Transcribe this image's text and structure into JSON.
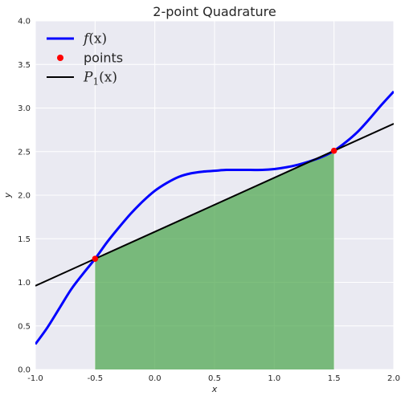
{
  "chart_data": {
    "type": "line",
    "title": "2-point Quadrature",
    "xlabel": "x",
    "ylabel": "y",
    "xlim": [
      -1.0,
      2.0
    ],
    "ylim": [
      0.0,
      4.0
    ],
    "xticks": [
      "-1.0",
      "-0.5",
      "0.0",
      "0.5",
      "1.0",
      "1.5",
      "2.0"
    ],
    "yticks": [
      "0.0",
      "0.5",
      "1.0",
      "1.5",
      "2.0",
      "2.5",
      "3.0",
      "3.5",
      "4.0"
    ],
    "grid": true,
    "legend_placement": "top-left",
    "colors": {
      "curve": "#0000ff",
      "points": "#ff0000",
      "interp": "#000000",
      "fill": "#4ca64c",
      "background": "#eaeaf2"
    },
    "series": [
      {
        "kind": "curve",
        "x": [
          -1.0,
          -0.9,
          -0.8,
          -0.7,
          -0.6,
          -0.5,
          -0.4,
          -0.3,
          -0.2,
          -0.1,
          0.0,
          0.1,
          0.2,
          0.3,
          0.4,
          0.5,
          0.6,
          0.7,
          0.8,
          0.9,
          1.0,
          1.1,
          1.2,
          1.3,
          1.4,
          1.5,
          1.6,
          1.7,
          1.8,
          1.9,
          2.0
        ],
        "y": [
          0.29,
          0.48,
          0.7,
          0.92,
          1.1,
          1.27,
          1.46,
          1.63,
          1.79,
          1.93,
          2.05,
          2.14,
          2.21,
          2.25,
          2.27,
          2.28,
          2.29,
          2.29,
          2.29,
          2.29,
          2.3,
          2.32,
          2.35,
          2.39,
          2.44,
          2.51,
          2.61,
          2.73,
          2.88,
          3.04,
          3.19
        ]
      },
      {
        "kind": "points",
        "label": "points",
        "x": [
          -0.5,
          1.5
        ],
        "y": [
          1.27,
          2.51
        ]
      },
      {
        "kind": "line",
        "x": [
          -1.0,
          2.0
        ],
        "y": [
          0.96,
          2.82
        ]
      }
    ],
    "fill": {
      "x0": -0.5,
      "x1": 1.5
    },
    "legend": [
      {
        "kind": "curve",
        "base": "f",
        "arg": "(x)"
      },
      {
        "kind": "points",
        "text": "points"
      },
      {
        "kind": "line",
        "base": "P",
        "sub": "1",
        "arg": "(x)"
      }
    ]
  }
}
